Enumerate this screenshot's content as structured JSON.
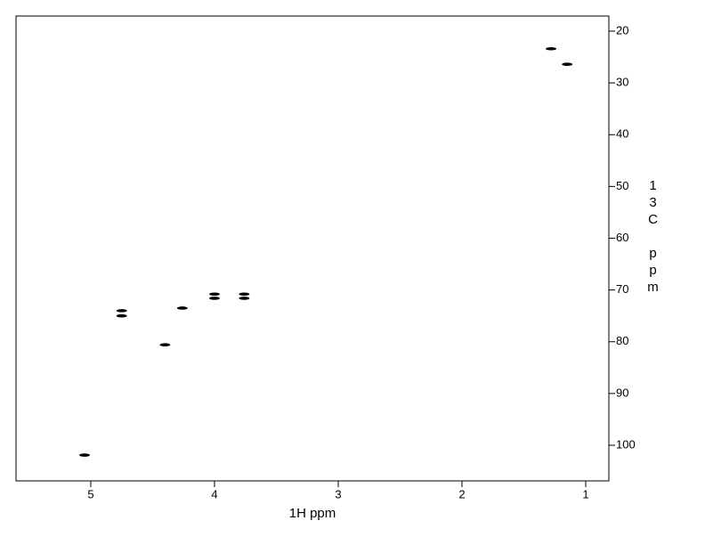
{
  "chart_data": {
    "type": "scatter",
    "x_label": "1H ppm",
    "y_label": "13C ppm",
    "x": [
      5.05,
      4.75,
      4.75,
      4.4,
      4.26,
      4.0,
      4.0,
      3.76,
      3.76,
      1.28,
      1.15
    ],
    "values": [
      101.9,
      74.0,
      75.0,
      80.6,
      73.5,
      71.6,
      70.8,
      70.8,
      71.6,
      23.4,
      26.4
    ],
    "color": "#000000",
    "xlim": [
      5.604,
      0.813
    ],
    "xticks": [
      5,
      4,
      3,
      2,
      1
    ],
    "ylim": [
      17.08,
      106.88
    ],
    "yticks": [
      20,
      30,
      40,
      50,
      60,
      70,
      80,
      90,
      100
    ],
    "grid": false
  }
}
